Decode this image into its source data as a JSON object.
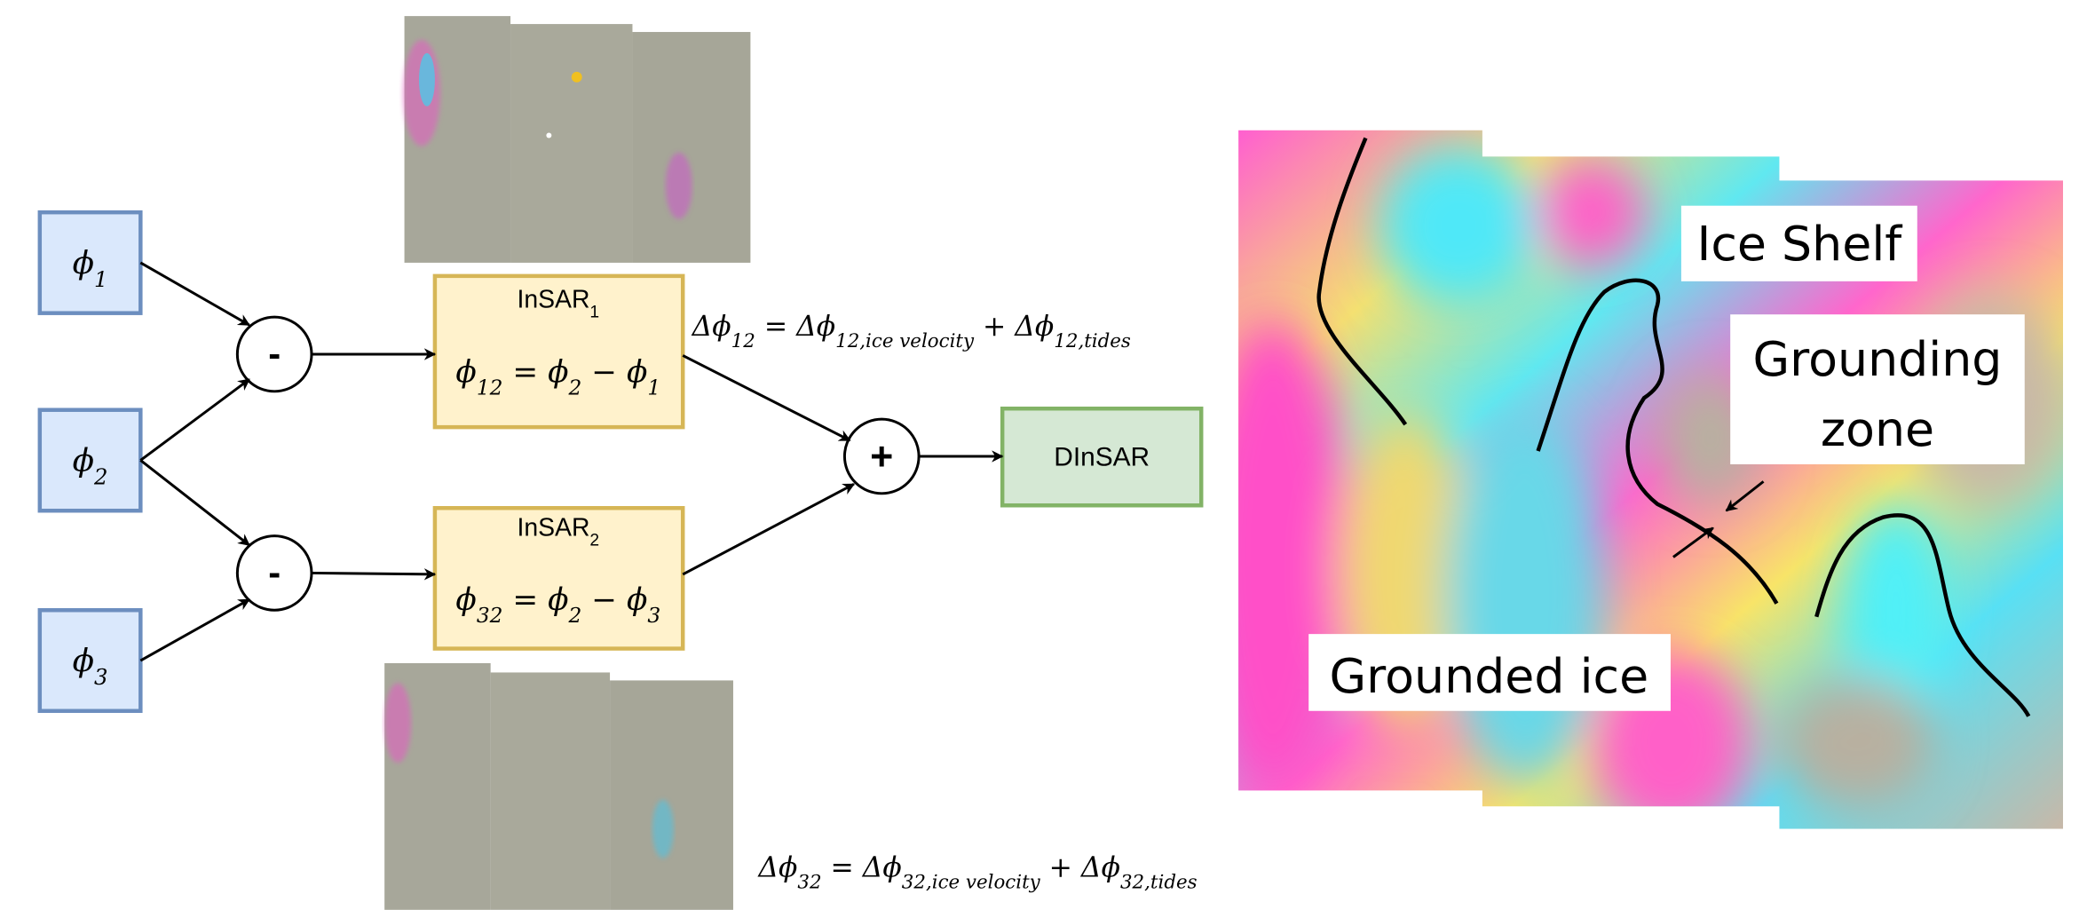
{
  "inputs": [
    [
      {
        "text": "ϕ",
        "sub": "1"
      }
    ],
    [
      {
        "text": "ϕ",
        "sub": "2"
      }
    ],
    [
      {
        "text": "ϕ",
        "sub": "3"
      }
    ]
  ],
  "operators": [
    "-",
    "-",
    "+"
  ],
  "interferograms": [
    {
      "name": [
        {
          "text": "InSAR",
          "sub": "1"
        }
      ],
      "equation": [
        {
          "text": "ϕ",
          "sub": "12"
        },
        {
          "text": " = ϕ",
          "sub": "2"
        },
        {
          "text": " − ϕ",
          "sub": "1"
        }
      ]
    },
    {
      "name": [
        {
          "text": "InSAR",
          "sub": "2"
        }
      ],
      "equation": [
        {
          "text": "ϕ",
          "sub": "32"
        },
        {
          "text": " = ϕ",
          "sub": "2"
        },
        {
          "text": " − ϕ",
          "sub": "3"
        }
      ]
    }
  ],
  "output": "DInSAR",
  "phase_equations": [
    [
      {
        "text": "Δϕ",
        "sub": "12"
      },
      {
        "text": " = Δϕ",
        "sub": "12,ice velocity"
      },
      {
        "text": " + Δϕ",
        "sub": "12,tides"
      }
    ],
    [
      {
        "text": "Δϕ",
        "sub": "32"
      },
      {
        "text": " = Δϕ",
        "sub": "32,ice velocity"
      },
      {
        "text": " + Δϕ",
        "sub": "32,tides"
      }
    ]
  ],
  "map_labels": {
    "ice_shelf": "Ice Shelf",
    "grounding_zone": [
      "Grounding",
      "zone"
    ],
    "grounded_ice": "Grounded ice"
  }
}
